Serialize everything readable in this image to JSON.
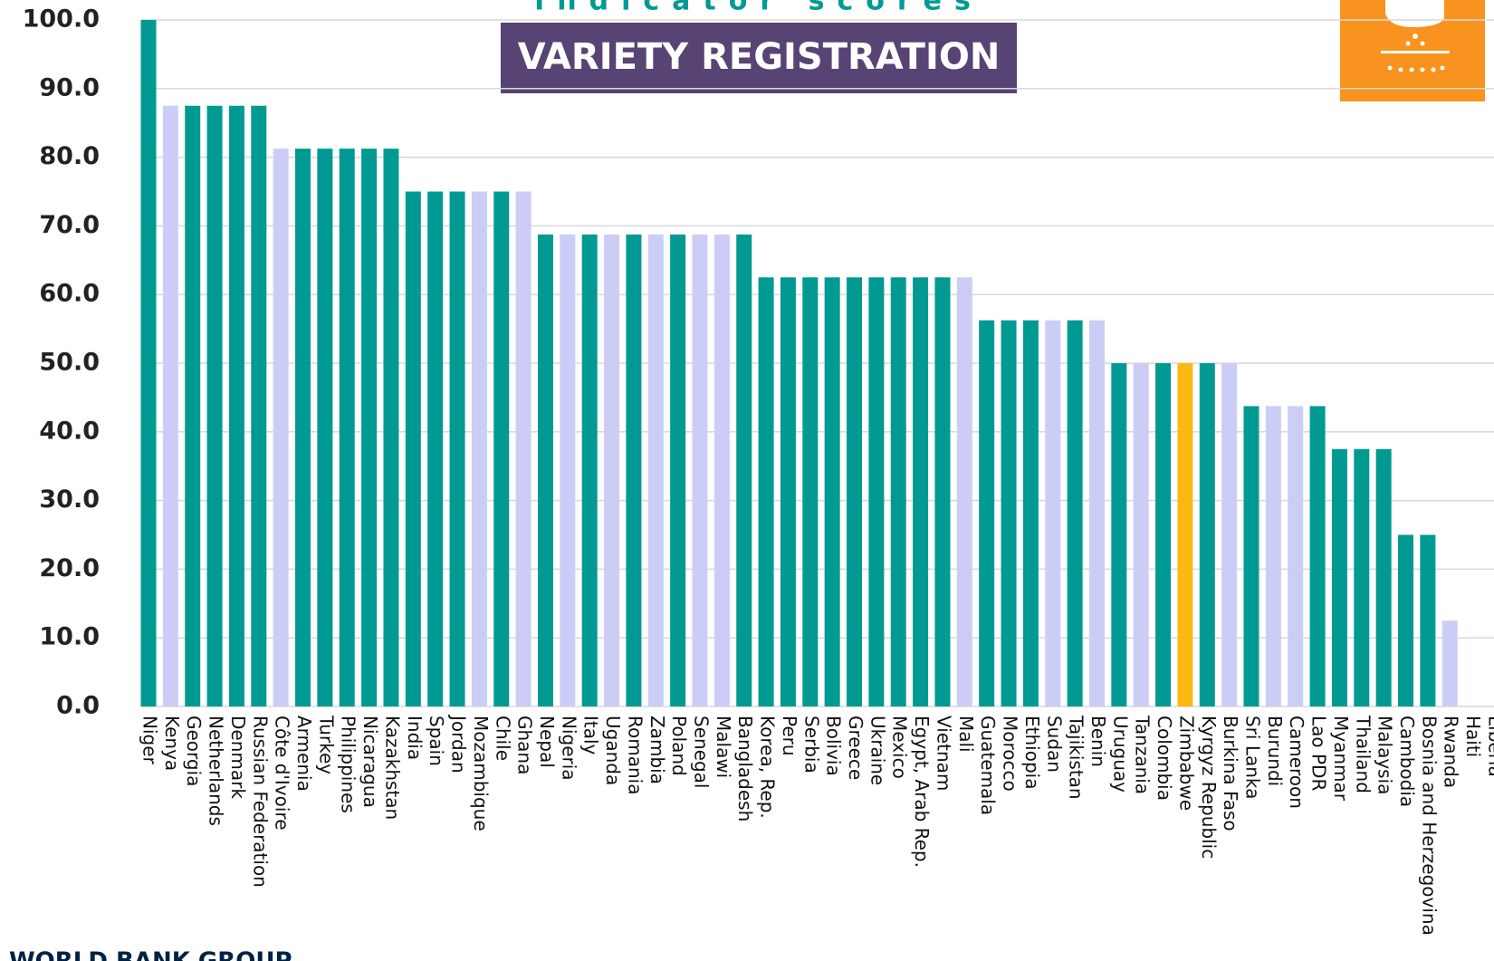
{
  "chart_data": {
    "type": "bar",
    "title": "Indicator scores",
    "subtitle": "VARIETY REGISTRATION",
    "footer": "WORLD BANK GROUP",
    "categories": [
      "Niger",
      "Kenya",
      "Georgia",
      "Netherlands",
      "Denmark",
      "Russian Federation",
      "Côte d'Ivoire",
      "Armenia",
      "Turkey",
      "Philippines",
      "Nicaragua",
      "Kazakhstan",
      "India",
      "Spain",
      "Jordan",
      "Mozambique",
      "Chile",
      "Ghana",
      "Nepal",
      "Nigeria",
      "Italy",
      "Uganda",
      "Romania",
      "Zambia",
      "Poland",
      "Senegal",
      "Malawi",
      "Bangladesh",
      "Korea, Rep.",
      "Peru",
      "Serbia",
      "Bolivia",
      "Greece",
      "Ukraine",
      "Mexico",
      "Egypt, Arab Rep.",
      "Vietnam",
      "Mali",
      "Guatemala",
      "Morocco",
      "Ethiopia",
      "Sudan",
      "Tajikistan",
      "Benin",
      "Uruguay",
      "Tanzania",
      "Colombia",
      "Zimbabwe",
      "Kyrgyz Republic",
      "Burkina Faso",
      "Sri Lanka",
      "Burundi",
      "Cameroon",
      "Lao PDR",
      "Myanmar",
      "Thailand",
      "Malaysia",
      "Cambodia",
      "Bosnia and Herzegovina",
      "Rwanda",
      "Haiti",
      "Liberia"
    ],
    "values": [
      100,
      87.5,
      87.5,
      87.5,
      87.5,
      87.5,
      81.25,
      81.25,
      81.25,
      81.25,
      81.25,
      81.25,
      75,
      75,
      75,
      75,
      75,
      75,
      68.75,
      68.75,
      68.75,
      68.75,
      68.75,
      68.75,
      68.75,
      68.75,
      68.75,
      68.75,
      62.5,
      62.5,
      62.5,
      62.5,
      62.5,
      62.5,
      62.5,
      62.5,
      62.5,
      62.5,
      56.25,
      56.25,
      56.25,
      56.25,
      56.25,
      56.25,
      50,
      50,
      50,
      50,
      50,
      50,
      43.75,
      43.75,
      43.75,
      43.75,
      37.5,
      37.5,
      37.5,
      25,
      25,
      12.5,
      0,
      0
    ],
    "colors": [
      "#009a93",
      "#cccdf7",
      "#009a93",
      "#009a93",
      "#009a93",
      "#009a93",
      "#cccdf7",
      "#009a93",
      "#009a93",
      "#009a93",
      "#009a93",
      "#009a93",
      "#009a93",
      "#009a93",
      "#009a93",
      "#cccdf7",
      "#009a93",
      "#cccdf7",
      "#009a93",
      "#cccdf7",
      "#009a93",
      "#cccdf7",
      "#009a93",
      "#cccdf7",
      "#009a93",
      "#cccdf7",
      "#cccdf7",
      "#009a93",
      "#009a93",
      "#009a93",
      "#009a93",
      "#009a93",
      "#009a93",
      "#009a93",
      "#009a93",
      "#009a93",
      "#009a93",
      "#cccdf7",
      "#009a93",
      "#009a93",
      "#009a93",
      "#cccdf7",
      "#009a93",
      "#cccdf7",
      "#009a93",
      "#cccdf7",
      "#009a93",
      "#fdb913",
      "#009a93",
      "#cccdf7",
      "#009a93",
      "#cccdf7",
      "#cccdf7",
      "#009a93",
      "#009a93",
      "#009a93",
      "#009a93",
      "#009a93",
      "#009a93",
      "#cccdf7",
      "#009a93",
      "#009a93"
    ],
    "ylim": [
      0,
      100
    ],
    "yticks": [
      {
        "value": 0,
        "label": "0.0"
      },
      {
        "value": 10,
        "label": "10.0"
      },
      {
        "value": 20,
        "label": "20.0"
      },
      {
        "value": 30,
        "label": "30.0"
      },
      {
        "value": 40,
        "label": "40.0"
      },
      {
        "value": 50,
        "label": "50.0"
      },
      {
        "value": 60,
        "label": "60.0"
      },
      {
        "value": 70,
        "label": "70.0"
      },
      {
        "value": 80,
        "label": "80.0"
      },
      {
        "value": 90,
        "label": "90.0"
      },
      {
        "value": 100,
        "label": "100.0"
      }
    ],
    "grid": true
  }
}
